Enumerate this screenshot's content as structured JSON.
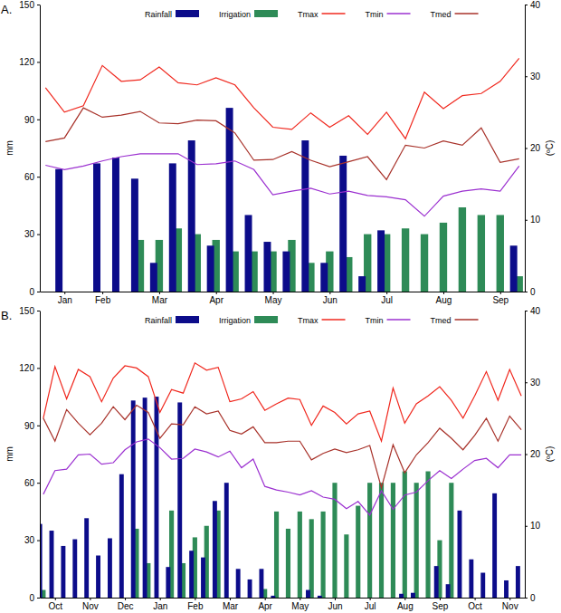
{
  "chart_data": [
    {
      "type": "bar",
      "title": "A.",
      "ylabel": "mm",
      "y2label": "(ºC)",
      "categories": [
        null,
        "Jan",
        null,
        "Feb",
        null,
        null,
        "Mar",
        null,
        null,
        "Apr",
        null,
        null,
        "May",
        null,
        null,
        "Jun",
        null,
        null,
        "Jul",
        null,
        null,
        "Aug",
        null,
        null,
        "Sep",
        null
      ],
      "ylim": [
        0,
        150
      ],
      "yticks": [
        0,
        30,
        60,
        90,
        120,
        150
      ],
      "y2lim": [
        0,
        40
      ],
      "y2ticks": [
        0,
        10,
        20,
        30,
        40
      ],
      "legend": "top",
      "series": [
        {
          "name": "Rainfall",
          "type": "bar",
          "color": "#0c0c8a",
          "values": [
            null,
            64,
            null,
            67,
            70,
            59,
            15,
            67,
            79,
            24,
            96,
            40,
            26,
            21,
            79,
            15,
            71,
            8,
            32,
            null,
            null,
            null,
            null,
            null,
            null,
            24
          ]
        },
        {
          "name": "Irrigation",
          "type": "bar",
          "color": "#2e8b57",
          "values": [
            null,
            null,
            null,
            null,
            null,
            27,
            27,
            33,
            30,
            27,
            21,
            21,
            21,
            27,
            15,
            21,
            18,
            30,
            30,
            33,
            30,
            36,
            44,
            40,
            40,
            8
          ]
        },
        {
          "name": "Tmax",
          "type": "line",
          "axis": "y2",
          "color": "#f0281e",
          "values": [
            28.4,
            25,
            25.9,
            31.5,
            29.3,
            29.5,
            31.3,
            29.1,
            28.8,
            29.8,
            28.8,
            25.6,
            22.9,
            22.6,
            24.9,
            22.9,
            24.5,
            21.9,
            25,
            21.3,
            27.8,
            25.5,
            27.3,
            27.6,
            29.3,
            32.5
          ]
        },
        {
          "name": "Tmin",
          "type": "line",
          "axis": "y2",
          "color": "#9b30d0",
          "values": [
            17.6,
            17,
            17.5,
            18.2,
            18.8,
            19.2,
            19.2,
            19.2,
            17.7,
            17.8,
            18.2,
            17,
            13.5,
            14,
            14.4,
            13.6,
            14,
            13.4,
            13.2,
            12.8,
            10.5,
            13.3,
            14,
            14.3,
            14,
            17.5
          ]
        },
        {
          "name": "Tmed",
          "type": "line",
          "axis": "y2",
          "color": "#a8322a",
          "values": [
            20.9,
            21.4,
            25.6,
            24.3,
            24.6,
            25.1,
            23.5,
            23.4,
            23.9,
            23.8,
            22.1,
            18.3,
            18.4,
            19.5,
            18.3,
            17.4,
            18.1,
            18.8,
            15.6,
            20.4,
            20,
            21,
            20.4,
            22.8,
            18,
            18.5
          ]
        }
      ]
    },
    {
      "type": "bar",
      "title": "B.",
      "ylabel": "mm",
      "y2label": "(ºC)",
      "categories": [
        null,
        "Oct",
        null,
        null,
        "Nov",
        null,
        null,
        "Dec",
        null,
        null,
        "Jan",
        null,
        null,
        "Feb",
        null,
        null,
        "Mar",
        null,
        null,
        "Apr",
        null,
        null,
        "May",
        null,
        null,
        "Jun",
        null,
        null,
        "Jul",
        null,
        null,
        "Aug",
        null,
        null,
        "Sep",
        null,
        null,
        "Oct",
        null,
        null,
        "Nov",
        null
      ],
      "ylim": [
        0,
        150
      ],
      "yticks": [
        0,
        30,
        60,
        90,
        120,
        150
      ],
      "y2lim": [
        0,
        40
      ],
      "y2ticks": [
        0,
        10,
        20,
        30,
        40
      ],
      "legend": "top",
      "series": [
        {
          "name": "Rainfall",
          "type": "bar",
          "color": "#0c0c8a",
          "values": [
            38.5,
            35,
            27,
            30.5,
            41.5,
            22,
            31,
            64.5,
            103,
            104.5,
            105,
            16,
            102,
            24.5,
            21,
            50.5,
            60,
            15,
            9.5,
            15,
            1,
            null,
            null,
            4,
            1,
            null,
            null,
            null,
            null,
            null,
            null,
            2,
            2.5,
            null,
            16.5,
            7,
            45.5,
            20,
            13,
            54.5,
            9,
            16.5
          ]
        },
        {
          "name": "Irrigation",
          "type": "bar",
          "color": "#2e8b57",
          "values": [
            4,
            null,
            null,
            null,
            null,
            null,
            null,
            null,
            36,
            18,
            null,
            45.5,
            18,
            31.5,
            37.5,
            45.5,
            null,
            null,
            null,
            4.5,
            45,
            36,
            45,
            41,
            45,
            60,
            33,
            48,
            60,
            60,
            60,
            66,
            60,
            66,
            30,
            60,
            null,
            null,
            null,
            null,
            null,
            null
          ]
        },
        {
          "name": "Tmax",
          "type": "line",
          "axis": "y2",
          "color": "#f0281e",
          "values": [
            25,
            32.2,
            27.7,
            31.8,
            30.8,
            27.3,
            30.6,
            32.3,
            32,
            30.8,
            25.8,
            29,
            28.5,
            32.7,
            31.7,
            32.1,
            27.3,
            27.7,
            28.7,
            26.1,
            27,
            27.8,
            27.6,
            24,
            26.7,
            25.8,
            24.2,
            25.6,
            26,
            21.8,
            29.2,
            24.3,
            27,
            28.1,
            29.4,
            27.5,
            25,
            28.1,
            31.5,
            27.5,
            31.8,
            28.1
          ]
        },
        {
          "name": "Tmin",
          "type": "line",
          "axis": "y2",
          "color": "#9b30d0",
          "values": [
            14.4,
            17.7,
            17.9,
            19.9,
            20,
            18.6,
            18.8,
            20.6,
            21.7,
            22.1,
            20.9,
            19.3,
            19.4,
            20.7,
            20.3,
            19.6,
            20.4,
            18.1,
            19.3,
            15.5,
            15,
            14.7,
            14.3,
            14.9,
            14,
            13.7,
            12.4,
            13.4,
            11.5,
            14.9,
            12.3,
            14.3,
            14.7,
            16.3,
            17.7,
            16.6,
            17.9,
            19.1,
            19.4,
            18.1,
            19.9,
            19.9
          ]
        },
        {
          "name": "Tmed",
          "type": "line",
          "axis": "y2",
          "color": "#a8322a",
          "values": [
            25,
            21.8,
            26.2,
            24.3,
            22.7,
            24.3,
            26.6,
            24.8,
            26.8,
            25.8,
            22.2,
            24.2,
            24.1,
            26.6,
            25.6,
            26,
            23.3,
            22.8,
            23.8,
            21.6,
            21.6,
            21.8,
            21.8,
            19.2,
            20.1,
            20.7,
            20.2,
            20.6,
            21.2,
            15.3,
            21.3,
            17.4,
            19.9,
            21.6,
            23.6,
            22.2,
            20.6,
            22.6,
            25,
            21.8,
            25.3,
            23.4
          ]
        }
      ]
    }
  ]
}
